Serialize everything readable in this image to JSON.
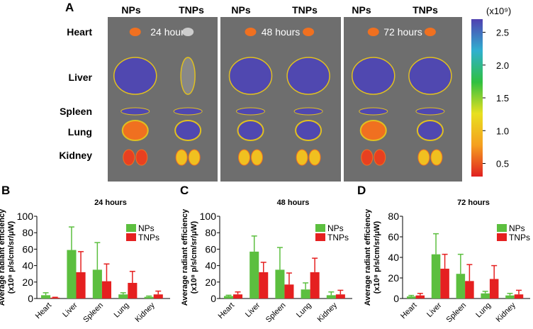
{
  "panel_a": {
    "label": "A",
    "column_headers": [
      "NPs",
      "TNPs",
      "NPs",
      "TNPs",
      "NPs",
      "TNPs"
    ],
    "time_labels": [
      "24 hours",
      "48 hours",
      "72 hours"
    ],
    "organs": [
      "Heart",
      "Liver",
      "Spleen",
      "Lung",
      "Kidney"
    ],
    "colorbar": {
      "unit": "(x10⁹)",
      "ticks": [
        "2.5",
        "2.0",
        "1.5",
        "1.0",
        "0.5"
      ],
      "tick_values": [
        2.5,
        2.0,
        1.5,
        1.0,
        0.5
      ],
      "range": [
        0.3,
        2.7
      ]
    }
  },
  "colors": {
    "NPs": "#5cbf3f",
    "TNPs": "#e52020",
    "background": "#6e6e6e"
  },
  "chart_data": [
    {
      "type": "bar",
      "panel": "B",
      "title": "24 hours",
      "ylabel": "Average radiant efficiency (x10⁸ p/s/cm/sr/μW)",
      "ylim": [
        0,
        100
      ],
      "yticks": [
        "0",
        "20",
        "40",
        "60",
        "80",
        "100"
      ],
      "categories": [
        "Heart",
        "Liver",
        "Spleen",
        "Lung",
        "Kidney"
      ],
      "legend": "top-right",
      "series": [
        {
          "name": "NPs",
          "values": [
            4,
            59,
            35,
            5,
            2
          ],
          "error_upper": [
            7,
            87,
            68,
            7,
            3
          ]
        },
        {
          "name": "TNPs",
          "values": [
            1,
            32,
            21,
            19,
            5
          ],
          "error_upper": [
            1.5,
            57,
            42,
            33,
            9
          ]
        }
      ]
    },
    {
      "type": "bar",
      "panel": "C",
      "title": "48 hours",
      "ylabel": "Average radiant efficiency (x10⁸ p/s/cm/sr/μW)",
      "ylim": [
        0,
        100
      ],
      "yticks": [
        "0",
        "20",
        "40",
        "60",
        "80",
        "100"
      ],
      "categories": [
        "Heart",
        "Liver",
        "Spleen",
        "Lung",
        "Kidney"
      ],
      "legend": "top-right",
      "series": [
        {
          "name": "NPs",
          "values": [
            3,
            57,
            35,
            11,
            4
          ],
          "error_upper": [
            4,
            76,
            62,
            19,
            8
          ]
        },
        {
          "name": "TNPs",
          "values": [
            5,
            32,
            17,
            32,
            5
          ],
          "error_upper": [
            8,
            44,
            31,
            49,
            10
          ]
        }
      ]
    },
    {
      "type": "bar",
      "panel": "D",
      "title": "72 hours",
      "ylabel": "Average radiant efficiency (x10⁸ p/s/cm/sr/μW)",
      "ylim": [
        0,
        80
      ],
      "yticks": [
        "0",
        "20",
        "40",
        "60",
        "80"
      ],
      "categories": [
        "Heart",
        "Liver",
        "Spleen",
        "Lung",
        "Kidney"
      ],
      "legend": "top-right",
      "series": [
        {
          "name": "NPs",
          "values": [
            2,
            43,
            24,
            5,
            3
          ],
          "error_upper": [
            3,
            63,
            43,
            7,
            5
          ]
        },
        {
          "name": "TNPs",
          "values": [
            3,
            29,
            17,
            19,
            4
          ],
          "error_upper": [
            5,
            43,
            33,
            32,
            8
          ]
        }
      ]
    }
  ]
}
